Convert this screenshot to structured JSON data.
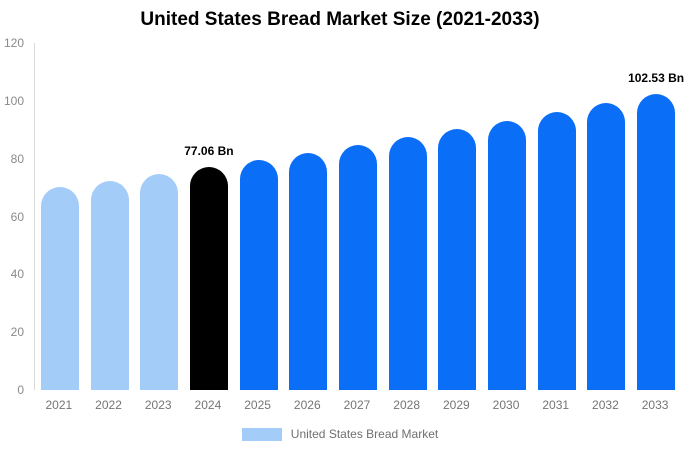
{
  "chart_data": {
    "type": "bar",
    "title": "United States Bread Market Size (2021-2033)",
    "xlabel": "",
    "ylabel": "",
    "categories": [
      "2021",
      "2022",
      "2023",
      "2024",
      "2025",
      "2026",
      "2027",
      "2028",
      "2029",
      "2030",
      "2031",
      "2032",
      "2033"
    ],
    "values": [
      70.08,
      72.33,
      74.66,
      77.06,
      79.54,
      82.1,
      84.74,
      87.47,
      90.29,
      93.19,
      96.19,
      99.29,
      102.53
    ],
    "value_unit": "Bn",
    "point_labels": {
      "2024": "77.06 Bn",
      "2033": "102.53 Bn"
    },
    "bar_colors": [
      "#a4ccf8",
      "#a4ccf8",
      "#a4ccf8",
      "#000000",
      "#0b6ef7",
      "#0b6ef7",
      "#0b6ef7",
      "#0b6ef7",
      "#0b6ef7",
      "#0b6ef7",
      "#0b6ef7",
      "#0b6ef7",
      "#0b6ef7"
    ],
    "yticks": [
      0,
      20,
      40,
      60,
      80,
      100,
      120
    ],
    "ylim": [
      0,
      120
    ],
    "grid": false,
    "legend_position": "bottom",
    "legend": [
      {
        "label": "United States Bread Market",
        "swatch": "#a4ccf8"
      }
    ]
  }
}
